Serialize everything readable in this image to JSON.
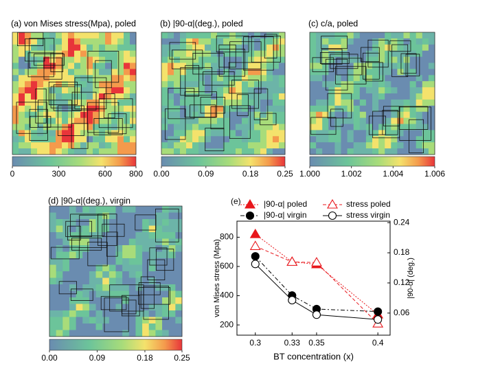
{
  "panels": [
    {
      "title": "(a) von Mises stress(Mpa), poled",
      "colorbar_range": [
        0,
        800
      ],
      "colorbar_ticks": [
        0,
        300,
        600,
        800
      ]
    },
    {
      "title": "(b) |90-α|(deg.), poled",
      "colorbar_range": [
        0,
        0.25
      ],
      "colorbar_ticks": [
        {
          "value": 0,
          "label": "0.00"
        },
        0.09,
        0.18,
        0.25
      ]
    },
    {
      "title": "(c) c/a, poled",
      "colorbar_range": [
        1.0,
        1.006
      ],
      "colorbar_ticks": [
        {
          "value": 1.0,
          "label": "1.000"
        },
        1.002,
        1.004,
        1.006
      ]
    },
    {
      "title": "(d) |90-α|(deg.), virgin",
      "colorbar_range": [
        0,
        0.25
      ],
      "colorbar_ticks": [
        {
          "value": 0,
          "label": "0.00"
        },
        0.09,
        0.18,
        0.25
      ]
    }
  ],
  "chart_data": {
    "type": "line",
    "panel_label": "(e)",
    "x_label": "BT concentration (x)",
    "y_label": "von Mises stress (Mpa)",
    "y2_label": "|90-α| (deg.)",
    "x": [
      0.3,
      0.33,
      0.35,
      0.4
    ],
    "xlim": [
      0.285,
      0.41
    ],
    "xticks": [
      0.3,
      0.33,
      0.35,
      0.4
    ],
    "ylim": [
      130,
      910
    ],
    "yticks": [
      200,
      400,
      600,
      800
    ],
    "y2lim": [
      0.016,
      0.243
    ],
    "y2ticks": [
      0.06,
      0.12,
      0.18,
      0.24
    ],
    "series": [
      {
        "name": "|90-α| poled",
        "color": "#e8161b",
        "axis": "y2",
        "marker": "triangle",
        "filled": true,
        "linestyle": "dotted",
        "values": [
          0.217,
          0.162,
          0.157,
          0.057
        ]
      },
      {
        "name": "stress poled",
        "color": "#e8161b",
        "axis": "y",
        "marker": "triangle",
        "filled": false,
        "linestyle": "dashed",
        "values": [
          739,
          631,
          627,
          209
        ]
      },
      {
        "name": "|90-α| virgin",
        "color": "#000000",
        "axis": "y2",
        "marker": "circle",
        "filled": true,
        "linestyle": "dashdot",
        "values": [
          0.173,
          0.095,
          0.068,
          0.063
        ]
      },
      {
        "name": "stress virgin",
        "color": "#000000",
        "axis": "y",
        "marker": "circle",
        "filled": false,
        "linestyle": "solid",
        "values": [
          617,
          369,
          270,
          237
        ]
      }
    ]
  }
}
